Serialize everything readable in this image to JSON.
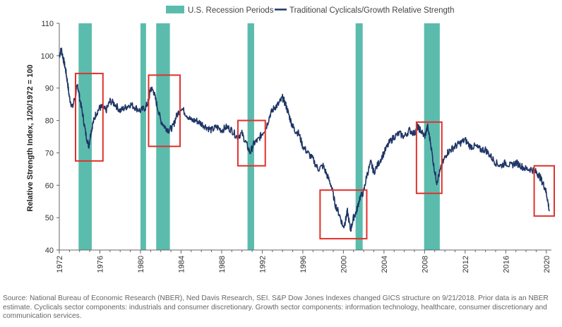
{
  "chart_data": {
    "type": "line",
    "title": "",
    "xlabel": "",
    "ylabel": "Relative Strength Index, 1/20/1972 = 100",
    "xlim": [
      1972,
      2020.5
    ],
    "ylim": [
      40,
      110
    ],
    "grid": false,
    "legend_position": "top",
    "x_ticks": [
      "1972",
      "1976",
      "1980",
      "1984",
      "1988",
      "1992",
      "1996",
      "2000",
      "2004",
      "2008",
      "2012",
      "2016",
      "2020"
    ],
    "y_ticks": [
      "40",
      "50",
      "60",
      "70",
      "80",
      "90",
      "100",
      "110"
    ],
    "legend": [
      {
        "label": "U.S. Recession Periods",
        "kind": "band",
        "color": "#5bbcad"
      },
      {
        "label": "Traditional Cyclicals/Growth Relative Strength",
        "kind": "line",
        "color": "#1f3566"
      }
    ],
    "recessions": [
      [
        1973.9,
        1975.2
      ],
      [
        1980.0,
        1980.55
      ],
      [
        1981.55,
        1982.9
      ],
      [
        1990.55,
        1991.2
      ],
      [
        2001.2,
        2001.9
      ],
      [
        2007.95,
        2009.5
      ]
    ],
    "highlight_boxes": [
      {
        "x": [
          1973.6,
          1976.3
        ],
        "y": [
          67.5,
          94.5
        ]
      },
      {
        "x": [
          1980.8,
          1983.9
        ],
        "y": [
          72,
          94
        ]
      },
      {
        "x": [
          1989.6,
          1992.3
        ],
        "y": [
          66,
          80
        ]
      },
      {
        "x": [
          1997.7,
          2002.3
        ],
        "y": [
          43.5,
          58.5
        ]
      },
      {
        "x": [
          2007.2,
          2009.7
        ],
        "y": [
          57.5,
          79.5
        ]
      },
      {
        "x": [
          2018.8,
          2020.8
        ],
        "y": [
          50.5,
          66
        ]
      }
    ],
    "series": [
      {
        "color": "#1f3566",
        "x": [
          1972.0,
          1972.2,
          1972.4,
          1972.6,
          1972.8,
          1973.0,
          1973.3,
          1973.6,
          1973.8,
          1974.0,
          1974.3,
          1974.6,
          1974.9,
          1975.1,
          1975.3,
          1975.6,
          1976.0,
          1976.3,
          1976.6,
          1977.0,
          1977.5,
          1978.0,
          1978.5,
          1979.0,
          1979.5,
          1980.0,
          1980.5,
          1980.8,
          1981.0,
          1981.3,
          1981.6,
          1982.0,
          1982.4,
          1982.8,
          1983.2,
          1983.5,
          1984.0,
          1984.5,
          1985.0,
          1985.5,
          1986.0,
          1986.5,
          1987.0,
          1987.5,
          1988.0,
          1988.5,
          1989.0,
          1989.5,
          1990.0,
          1990.4,
          1990.8,
          1991.2,
          1991.6,
          1992.0,
          1992.4,
          1992.8,
          1993.2,
          1993.6,
          1994.0,
          1994.3,
          1994.6,
          1994.9,
          1995.2,
          1995.6,
          1996.0,
          1996.5,
          1997.0,
          1997.5,
          1998.0,
          1998.4,
          1998.8,
          1999.2,
          1999.6,
          2000.0,
          2000.2,
          2000.4,
          2000.7,
          2001.0,
          2001.3,
          2001.6,
          2002.0,
          2002.3,
          2002.7,
          2003.0,
          2003.5,
          2004.0,
          2004.5,
          2005.0,
          2005.5,
          2006.0,
          2006.5,
          2007.0,
          2007.3,
          2007.6,
          2008.0,
          2008.3,
          2008.6,
          2008.9,
          2009.2,
          2009.5,
          2009.8,
          2010.2,
          2010.6,
          2011.0,
          2011.5,
          2012.0,
          2012.5,
          2013.0,
          2013.5,
          2014.0,
          2014.5,
          2015.0,
          2015.5,
          2016.0,
          2016.5,
          2017.0,
          2017.5,
          2018.0,
          2018.5,
          2019.0,
          2019.3,
          2019.6,
          2019.9,
          2020.1,
          2020.3
        ],
        "y": [
          100,
          102,
          99,
          96,
          92,
          87,
          84,
          88,
          91,
          87,
          82,
          76,
          72,
          76,
          79,
          82,
          84,
          84,
          83,
          86,
          85,
          83,
          84,
          85,
          84,
          83,
          84,
          86,
          90,
          89,
          85,
          80,
          78,
          77,
          78,
          81,
          84,
          82,
          80,
          80,
          79,
          78,
          77,
          78,
          77,
          78,
          77,
          75,
          76,
          73,
          70,
          73,
          74,
          76,
          78,
          82,
          84,
          85,
          87,
          85,
          82,
          79,
          77,
          76,
          72,
          70,
          68,
          65,
          66,
          63,
          60,
          54,
          51,
          47,
          49,
          52,
          46,
          50,
          52,
          56,
          58,
          63,
          67,
          64,
          67,
          70,
          73,
          75,
          76,
          75,
          77,
          76,
          78,
          77,
          75,
          78,
          73,
          66,
          61,
          64,
          67,
          70,
          71,
          72,
          73,
          74,
          72,
          72,
          71,
          71,
          69,
          67,
          66,
          67,
          66,
          67,
          66,
          65,
          65,
          64,
          63,
          61,
          59,
          56,
          52
        ]
      }
    ]
  },
  "source_note": "Source: National Bureau of Economic Research (NBER), Ned Davis Research, SEI. S&P Dow Jones Indexes changed GICS structure on 9/21/2018. Prior data is an NBER estimate. Cyclicals sector components: industrials and consumer discretionary. Growth sector components: information technology, healthcare, consumer discretionary and communication services."
}
